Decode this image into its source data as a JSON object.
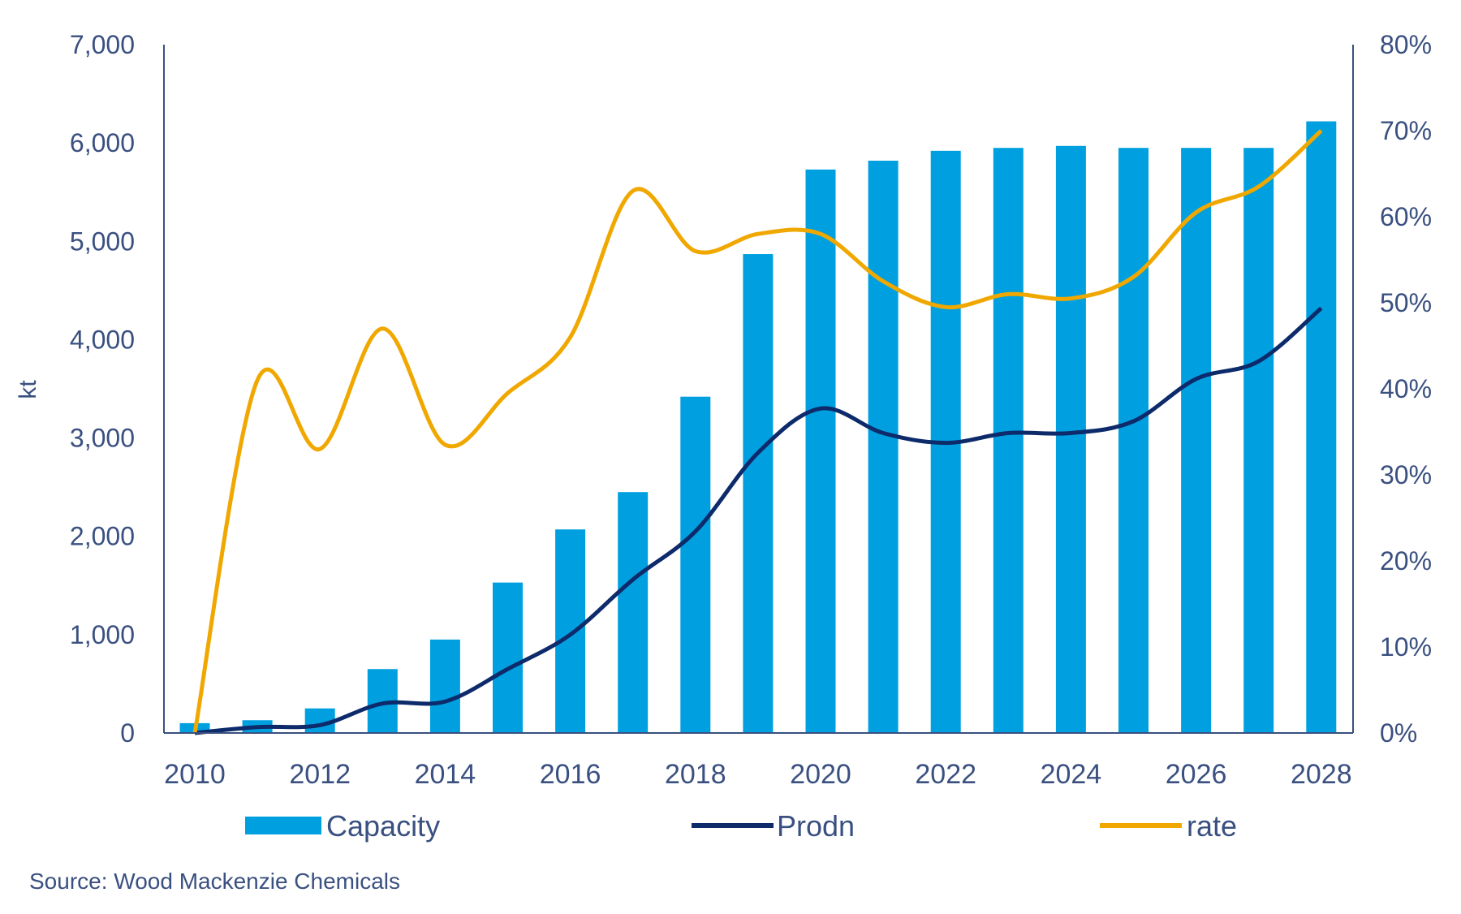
{
  "chart_data": {
    "type": "bar+line",
    "categories": [
      2010,
      2011,
      2012,
      2013,
      2014,
      2015,
      2016,
      2017,
      2018,
      2019,
      2020,
      2021,
      2022,
      2023,
      2024,
      2025,
      2026,
      2027,
      2028
    ],
    "x_tick_labels": [
      "2010",
      "2012",
      "2014",
      "2016",
      "2018",
      "2020",
      "2022",
      "2024",
      "2026",
      "2028"
    ],
    "ylabel": "kt",
    "ylim": [
      0,
      7000
    ],
    "y_ticks": [
      "0",
      "1,000",
      "2,000",
      "3,000",
      "4,000",
      "5,000",
      "6,000",
      "7,000"
    ],
    "y2lim": [
      0,
      80
    ],
    "y2_ticks": [
      "0%",
      "10%",
      "20%",
      "30%",
      "40%",
      "50%",
      "60%",
      "70%",
      "80%"
    ],
    "grid": false,
    "legend_placement": "bottom",
    "series": [
      {
        "name": "Capacity",
        "type": "bar",
        "axis": "left",
        "color": "#00a0e0",
        "values": [
          100,
          130,
          250,
          650,
          950,
          1530,
          2070,
          2450,
          3420,
          4870,
          5730,
          5820,
          5920,
          5950,
          5970,
          5950,
          5950,
          5950,
          6220
        ]
      },
      {
        "name": "Prodn",
        "type": "line",
        "axis": "left",
        "color": "#0d2a6b",
        "values": [
          0,
          60,
          80,
          300,
          320,
          650,
          1000,
          1560,
          2050,
          2850,
          3300,
          3050,
          2950,
          3050,
          3050,
          3170,
          3600,
          3780,
          4320
        ]
      },
      {
        "name": "rate",
        "type": "line",
        "axis": "right",
        "unit": "%",
        "color": "#f0a800",
        "values": [
          0,
          41,
          33,
          47,
          33.5,
          39.5,
          46,
          63,
          56,
          58,
          58,
          52.5,
          49.5,
          51,
          50.5,
          53,
          60.5,
          63.5,
          70
        ]
      }
    ],
    "source": "Source: Wood Mackenzie Chemicals"
  }
}
